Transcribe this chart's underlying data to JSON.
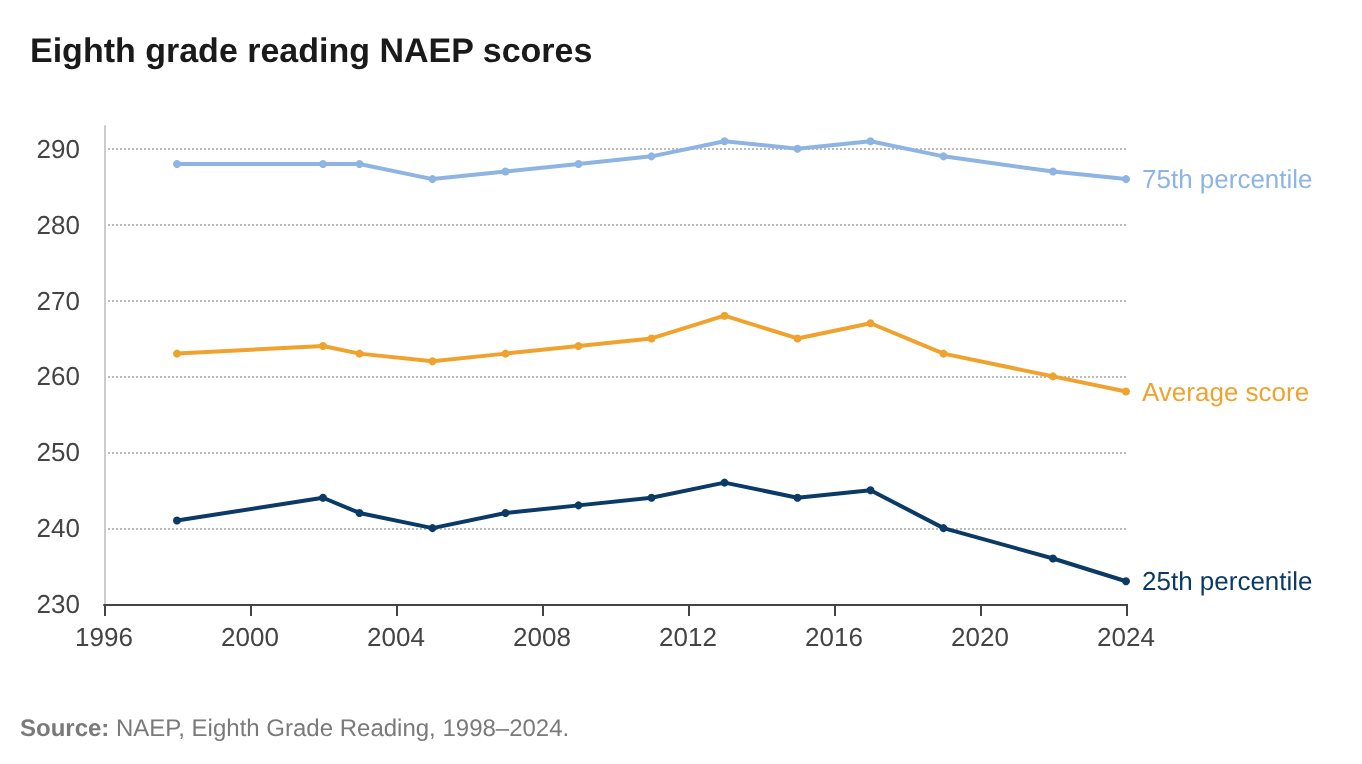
{
  "chart_data": {
    "type": "line",
    "title": "Eighth grade reading NAEP scores",
    "x": [
      1998,
      2002,
      2003,
      2005,
      2007,
      2009,
      2011,
      2013,
      2015,
      2017,
      2019,
      2022,
      2024
    ],
    "series": [
      {
        "name": "75th percentile",
        "color": "#8db4e2",
        "values": [
          288,
          288,
          288,
          286,
          287,
          288,
          289,
          291,
          290,
          291,
          289,
          287,
          286
        ]
      },
      {
        "name": "Average score",
        "color": "#f0a22e",
        "values": [
          263,
          264,
          263,
          262,
          263,
          264,
          265,
          268,
          265,
          267,
          263,
          260,
          258
        ]
      },
      {
        "name": "25th percentile",
        "color": "#0b3a66",
        "values": [
          241,
          244,
          242,
          240,
          242,
          243,
          244,
          246,
          244,
          245,
          240,
          236,
          233
        ]
      }
    ],
    "xlim": [
      1996,
      2024
    ],
    "xticks": [
      1996,
      2000,
      2004,
      2008,
      2012,
      2016,
      2020,
      2024
    ],
    "ylim": [
      230,
      293
    ],
    "yticks": [
      230,
      240,
      250,
      260,
      270,
      280,
      290
    ],
    "grid": "y",
    "legend": false,
    "marker": "circle",
    "line_style": "solid",
    "annotations": [
      "Source: NAEP, Eighth Grade Reading, 1998–2024."
    ]
  }
}
